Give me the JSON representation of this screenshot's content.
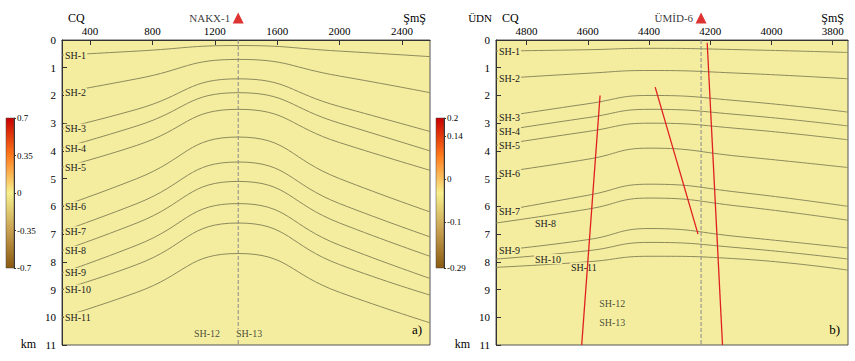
{
  "chart_data": [
    {
      "type": "seismic_section",
      "panel_label": "a)",
      "direction_labels": [
        "CQ",
        "ŞmŞ"
      ],
      "y_label": "km",
      "xlim": [
        220,
        2580
      ],
      "xticks": [
        400,
        800,
        1200,
        1600,
        2000,
        2400
      ],
      "ylim": [
        0,
        11
      ],
      "yticks": [
        0,
        1,
        2,
        3,
        4,
        5,
        6,
        7,
        8,
        9,
        10,
        11
      ],
      "well": {
        "name": "NAKX-1",
        "x": 1350
      },
      "horizons": [
        {
          "name": "SH-1",
          "x": [
            220,
            700,
            1350,
            2000,
            2580
          ],
          "depth": [
            0.55,
            0.4,
            0.2,
            0.4,
            0.6
          ]
        },
        {
          "name": "SH-2",
          "x": [
            220,
            700,
            1350,
            2000,
            2580
          ],
          "depth": [
            1.9,
            1.4,
            0.7,
            1.3,
            1.9
          ]
        },
        {
          "name": "SH-3",
          "x": [
            220,
            700,
            1350,
            2000,
            2580
          ],
          "depth": [
            3.2,
            2.5,
            1.4,
            2.4,
            3.3
          ]
        },
        {
          "name": "SH-4",
          "x": [
            220,
            700,
            1350,
            2000,
            2580
          ],
          "depth": [
            3.9,
            3.1,
            1.9,
            3.0,
            4.0
          ]
        },
        {
          "name": "SH-5",
          "x": [
            220,
            700,
            1350,
            2000,
            2580
          ],
          "depth": [
            4.6,
            3.8,
            2.5,
            3.7,
            4.7
          ]
        },
        {
          "name": "SH-6",
          "x": [
            220,
            700,
            1350,
            2000,
            2580
          ],
          "depth": [
            6.0,
            5.0,
            3.5,
            5.0,
            6.2
          ]
        },
        {
          "name": "SH-7",
          "x": [
            220,
            700,
            1350,
            2000,
            2580
          ],
          "depth": [
            6.9,
            5.9,
            4.4,
            5.9,
            7.1
          ]
        },
        {
          "name": "SH-8",
          "x": [
            220,
            700,
            1350,
            2000,
            2580
          ],
          "depth": [
            7.6,
            6.6,
            5.1,
            6.6,
            7.8
          ]
        },
        {
          "name": "SH-9",
          "x": [
            220,
            700,
            1350,
            2000,
            2580
          ],
          "depth": [
            8.4,
            7.4,
            5.9,
            7.4,
            8.6
          ]
        },
        {
          "name": "SH-10",
          "x": [
            220,
            700,
            1350,
            2000,
            2580
          ],
          "depth": [
            9.0,
            8.1,
            6.6,
            8.1,
            9.2
          ]
        },
        {
          "name": "SH-11",
          "x": [
            220,
            700,
            1350,
            2000,
            2580
          ],
          "depth": [
            10.0,
            9.1,
            7.7,
            9.1,
            10.2
          ]
        }
      ],
      "annotations": [
        {
          "text": "SH-12",
          "x": 1150,
          "depth": 10.6
        },
        {
          "text": "SH-13",
          "x": 1420,
          "depth": 10.6
        }
      ],
      "colorbar": {
        "range": [
          -0.7,
          0.7
        ],
        "ticks": [
          -0.7,
          -0.35,
          0,
          0.35,
          0.7
        ],
        "colors": [
          "#c80000",
          "#ff7a1a",
          "#f7f08c",
          "#c8a050",
          "#8a5a10"
        ]
      }
    },
    {
      "type": "seismic_section",
      "panel_label": "b)",
      "direction_labels": [
        "CQ",
        "ŞmŞ"
      ],
      "y_label": "km",
      "y_label_top": "ÜDN",
      "xlim": [
        4900,
        3750
      ],
      "xticks": [
        4800,
        4600,
        4400,
        4200,
        4000,
        3800
      ],
      "ylim": [
        0,
        11
      ],
      "yticks": [
        0,
        1,
        2,
        3,
        4,
        5,
        6,
        7,
        8,
        9,
        10,
        11
      ],
      "well": {
        "name": "ÜMİD-6",
        "x": 4230
      },
      "horizons": [
        {
          "name": "SH-1",
          "x": [
            4900,
            4600,
            4400,
            4100,
            3750
          ],
          "depth": [
            0.4,
            0.35,
            0.3,
            0.35,
            0.45
          ]
        },
        {
          "name": "SH-2",
          "x": [
            4900,
            4600,
            4400,
            4100,
            3750
          ],
          "depth": [
            1.4,
            1.2,
            1.1,
            1.2,
            1.4
          ]
        },
        {
          "name": "SH-3",
          "x": [
            4900,
            4600,
            4400,
            4100,
            3750
          ],
          "depth": [
            2.8,
            2.3,
            2.0,
            2.2,
            2.6
          ]
        },
        {
          "name": "SH-4",
          "x": [
            4900,
            4600,
            4400,
            4100,
            3750
          ],
          "depth": [
            3.3,
            2.8,
            2.5,
            2.7,
            3.1
          ]
        },
        {
          "name": "SH-5",
          "x": [
            4900,
            4600,
            4400,
            4100,
            3750
          ],
          "depth": [
            3.8,
            3.3,
            3.0,
            3.2,
            3.6
          ]
        },
        {
          "name": "SH-6",
          "x": [
            4900,
            4600,
            4400,
            4100,
            3750
          ],
          "depth": [
            4.8,
            4.3,
            3.9,
            4.2,
            4.6
          ]
        },
        {
          "name": "SH-7",
          "x": [
            4900,
            4600,
            4400,
            4100,
            3750
          ],
          "depth": [
            6.2,
            5.6,
            5.2,
            5.5,
            6.0
          ]
        },
        {
          "name": "SH-8",
          "x": [
            4900,
            4600,
            4400,
            4100,
            3750
          ],
          "depth": [
            6.6,
            6.1,
            5.7,
            6.0,
            6.5
          ]
        },
        {
          "name": "SH-9",
          "x": [
            4900,
            4600,
            4400,
            4100,
            3750
          ],
          "depth": [
            7.6,
            7.2,
            6.8,
            7.1,
            7.5
          ]
        },
        {
          "name": "SH-10",
          "x": [
            4900,
            4600,
            4400,
            4100,
            3750
          ],
          "depth": [
            7.9,
            7.6,
            7.3,
            7.5,
            7.9
          ]
        },
        {
          "name": "SH-11",
          "x": [
            4900,
            4600,
            4400,
            4100,
            3750
          ],
          "depth": [
            8.2,
            8.0,
            7.8,
            7.9,
            8.3
          ]
        }
      ],
      "faults": [
        {
          "x": [
            4560,
            4620
          ],
          "depth": [
            2.0,
            11
          ]
        },
        {
          "x": [
            4380,
            4240
          ],
          "depth": [
            1.7,
            7.0
          ]
        },
        {
          "x": [
            4210,
            4160
          ],
          "depth": [
            0.1,
            11
          ]
        }
      ],
      "annotations": [
        {
          "text": "SH-12",
          "x": 4520,
          "depth": 9.5
        },
        {
          "text": "SH-13",
          "x": 4520,
          "depth": 10.2
        }
      ],
      "colorbar": {
        "range": [
          -0.29,
          0.2
        ],
        "ticks": [
          -0.29,
          {
            "value": -0.14,
            "label": "-0.1"
          },
          0,
          0.14,
          0.2
        ],
        "colors": [
          "#c80000",
          "#ff7a1a",
          "#f7f08c",
          "#c8a050",
          "#8a5a10"
        ]
      }
    }
  ]
}
